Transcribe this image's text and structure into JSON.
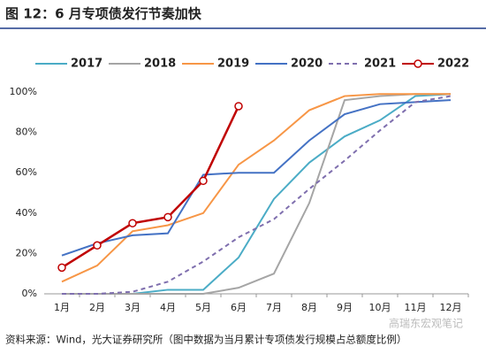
{
  "chart_data": {
    "type": "line",
    "title": "图 12：6 月专项债发行节奏加快",
    "source": "资料来源：Wind，光大证券研究所（图中数据为当月累计专项债发行规模占总额度比例）",
    "watermark": "高瑞东宏观笔记",
    "categories": [
      "1月",
      "2月",
      "3月",
      "4月",
      "5月",
      "6月",
      "7月",
      "8月",
      "9月",
      "10月",
      "11月",
      "12月"
    ],
    "series": [
      {
        "name": "2017",
        "color": "#4bacc6",
        "values": [
          0,
          0,
          0,
          2,
          2,
          18,
          47,
          65,
          78,
          86,
          98,
          99
        ]
      },
      {
        "name": "2018",
        "color": "#a5a5a5",
        "values": [
          0,
          0,
          0,
          0,
          0,
          3,
          10,
          45,
          96,
          98,
          99,
          99
        ]
      },
      {
        "name": "2019",
        "color": "#f79646",
        "values": [
          6,
          14,
          31,
          34,
          40,
          64,
          76,
          91,
          98,
          99,
          99,
          99
        ]
      },
      {
        "name": "2020",
        "color": "#4472c4",
        "values": [
          19,
          25,
          29,
          30,
          59,
          60,
          60,
          76,
          89,
          94,
          95,
          96
        ]
      },
      {
        "name": "2021",
        "color": "#7f6fae",
        "dashed": true,
        "values": [
          0,
          0,
          1,
          6,
          16,
          28,
          37,
          52,
          66,
          81,
          95,
          98
        ]
      },
      {
        "name": "2022",
        "color": "#c00000",
        "marker": true,
        "values": [
          13,
          24,
          35,
          38,
          56,
          93,
          null,
          null,
          null,
          null,
          null,
          null
        ]
      }
    ],
    "ylim": [
      0,
      100
    ],
    "yticks": [
      {
        "value": 0,
        "label": "0%"
      },
      {
        "value": 20,
        "label": "20%"
      },
      {
        "value": 40,
        "label": "40%"
      },
      {
        "value": 60,
        "label": "60%"
      },
      {
        "value": 80,
        "label": "80%"
      },
      {
        "value": 100,
        "label": "100%"
      }
    ],
    "grid": false
  }
}
